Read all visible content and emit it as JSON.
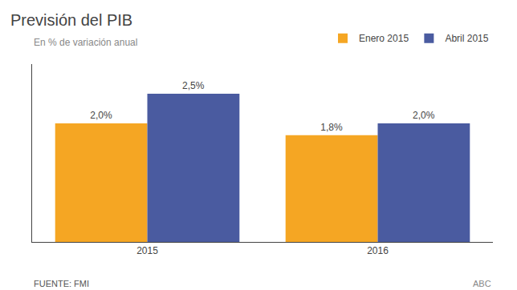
{
  "chart_data": {
    "type": "bar",
    "title": "Previsión del PIB",
    "subtitle": "En % de variación anual",
    "categories": [
      "2015",
      "2016"
    ],
    "series": [
      {
        "name": "Enero 2015",
        "color": "#F5A623",
        "values": [
          2.0,
          1.8
        ],
        "value_labels": [
          "2,0%",
          "1,8%"
        ]
      },
      {
        "name": "Abril 2015",
        "color": "#4A5BA0",
        "values": [
          2.5,
          2.0
        ],
        "value_labels": [
          "2,5%",
          "2,0%"
        ]
      }
    ],
    "ylim": [
      0,
      3.0
    ],
    "yticks": [],
    "tick_labels": "x",
    "grid": false,
    "data_labels": true,
    "legend": "top",
    "annotations": [
      "FUENTE: FMI",
      "ABC"
    ]
  }
}
